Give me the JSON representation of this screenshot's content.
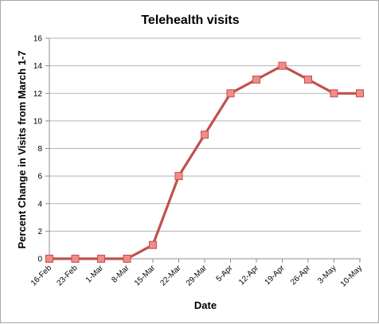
{
  "chart_data": {
    "type": "line",
    "title": "Telehealth visits",
    "xlabel": "Date",
    "ylabel": "Percent Change in Visits from March 1-7",
    "categories": [
      "16-Feb",
      "23-Feb",
      "1-Mar",
      "8-Mar",
      "15-Mar",
      "22-Mar",
      "29-Mar",
      "5-Apr",
      "12-Apr",
      "19-Apr",
      "26-Apr",
      "3-May",
      "10-May"
    ],
    "series": [
      {
        "values": [
          0,
          0,
          0,
          0,
          1,
          6,
          9,
          12,
          13,
          14,
          13,
          12,
          12
        ]
      }
    ],
    "ylim": [
      0,
      16
    ],
    "yticks": [
      0,
      2,
      4,
      6,
      8,
      10,
      12,
      14,
      16
    ],
    "grid": "horizontal",
    "legend": "none",
    "colors": {
      "line": "#c0504d",
      "marker_fill": "#f28b88",
      "marker_edge": "#c0504d",
      "gridline": "#b3b3b3",
      "axis": "#8c8c8c"
    }
  }
}
